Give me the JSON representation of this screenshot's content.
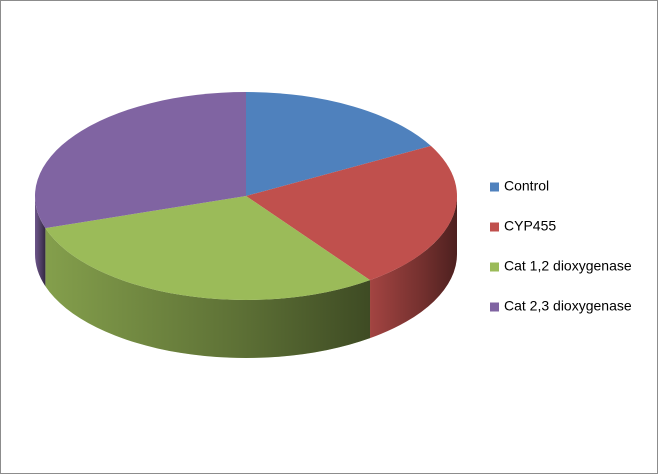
{
  "chart_data": {
    "type": "pie",
    "three_d": true,
    "categories": [
      "Control",
      "CYP455",
      "Cat 1,2 dioxygenase",
      "Cat 2,3 dioxygenase"
    ],
    "values": [
      17,
      23,
      30,
      30
    ],
    "colors": [
      "#4f81bd",
      "#c0504d",
      "#9bbb59",
      "#8064a2"
    ],
    "legend": "right"
  }
}
